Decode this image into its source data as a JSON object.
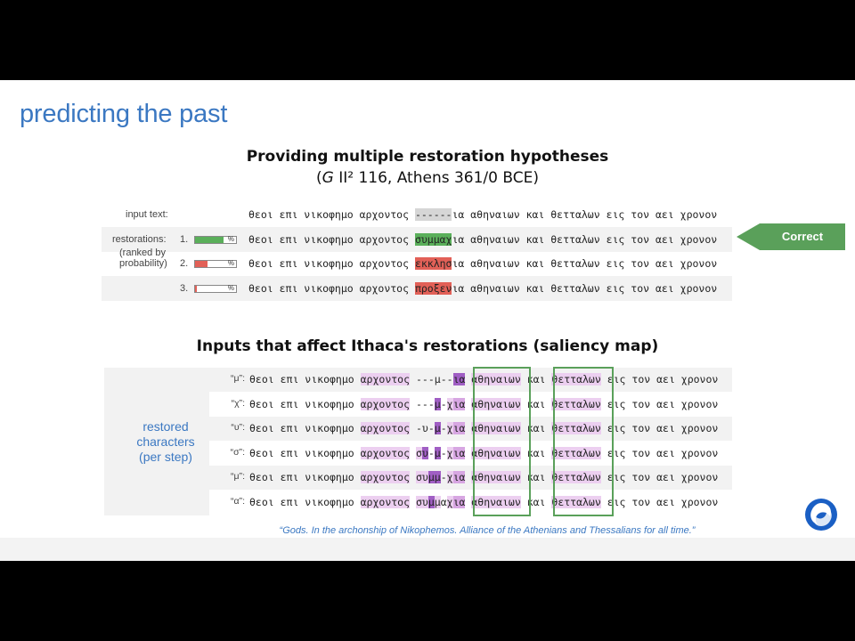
{
  "slide": {
    "title": "predicting the past",
    "heading1": "Providing multiple restoration hypotheses",
    "subheading_prefix": "(",
    "subheading_italic": "G",
    "subheading_rest": " II² 116, Athens 361/0 BCE)",
    "heading2": "Inputs that affect Ithaca's restorations (saliency map)",
    "translation": "“Gods. In the archonship of Nikophemos. Alliance of the Athenians and Thessalians for all time.”"
  },
  "restorations": {
    "input_label": "input text:",
    "restorations_label": "restorations:",
    "ranked_label_1": "(ranked by",
    "ranked_label_2": "probability)",
    "prefix": "θεοι επι νικοφημο αρχοντος ",
    "suffix": "ια αθηναιων και θετταλων εις τον αει χρονον",
    "input_gap": "------",
    "rows": [
      {
        "rank": "1.",
        "pct_label": "%",
        "confidence": 0.7,
        "restored": "συμμαχ",
        "color": "#5aaf5a"
      },
      {
        "rank": "2.",
        "pct_label": "%",
        "confidence": 0.3,
        "restored": "εκκλησ",
        "color": "#e26057"
      },
      {
        "rank": "3.",
        "pct_label": "%",
        "confidence": 0.05,
        "restored": "προξεν",
        "color": "#e26057"
      }
    ],
    "correct_label": "Correct"
  },
  "saliency": {
    "side_label_1": "restored",
    "side_label_2": "characters",
    "side_label_3": "(per step)",
    "rows": [
      {
        "char": "“μ”:",
        "gap": "---μ--",
        "g_hl": [
          0,
          0,
          0,
          0,
          0,
          0
        ]
      },
      {
        "char": "“χ”:",
        "gap": "---μ-χ",
        "g_hl": [
          0,
          0,
          0,
          2,
          0,
          1
        ]
      },
      {
        "char": "“υ”:",
        "gap": "-υ-μ-χ",
        "g_hl": [
          0,
          0,
          0,
          2,
          0,
          1
        ]
      },
      {
        "char": "“σ”:",
        "gap": "συ-μ-χ",
        "g_hl": [
          1,
          2,
          0,
          2,
          0,
          1
        ]
      },
      {
        "char": "“μ”:",
        "gap": "συμμ-χ",
        "g_hl": [
          1,
          1,
          2,
          2,
          0,
          1
        ]
      },
      {
        "char": "“α”:",
        "gap": "συμμαχ",
        "g_hl": [
          1,
          1,
          2,
          1,
          0,
          1
        ]
      }
    ]
  },
  "colors": {
    "title_blue": "#3b78c2",
    "correct_green": "#5aa05a",
    "saliency_light": "#eccff0",
    "saliency_mid": "#d7a6e2",
    "saliency_dark": "#a05ec4",
    "input_gap_gray": "#d6d6d6"
  },
  "icons": {
    "logo": "deepmind-logo-icon"
  }
}
